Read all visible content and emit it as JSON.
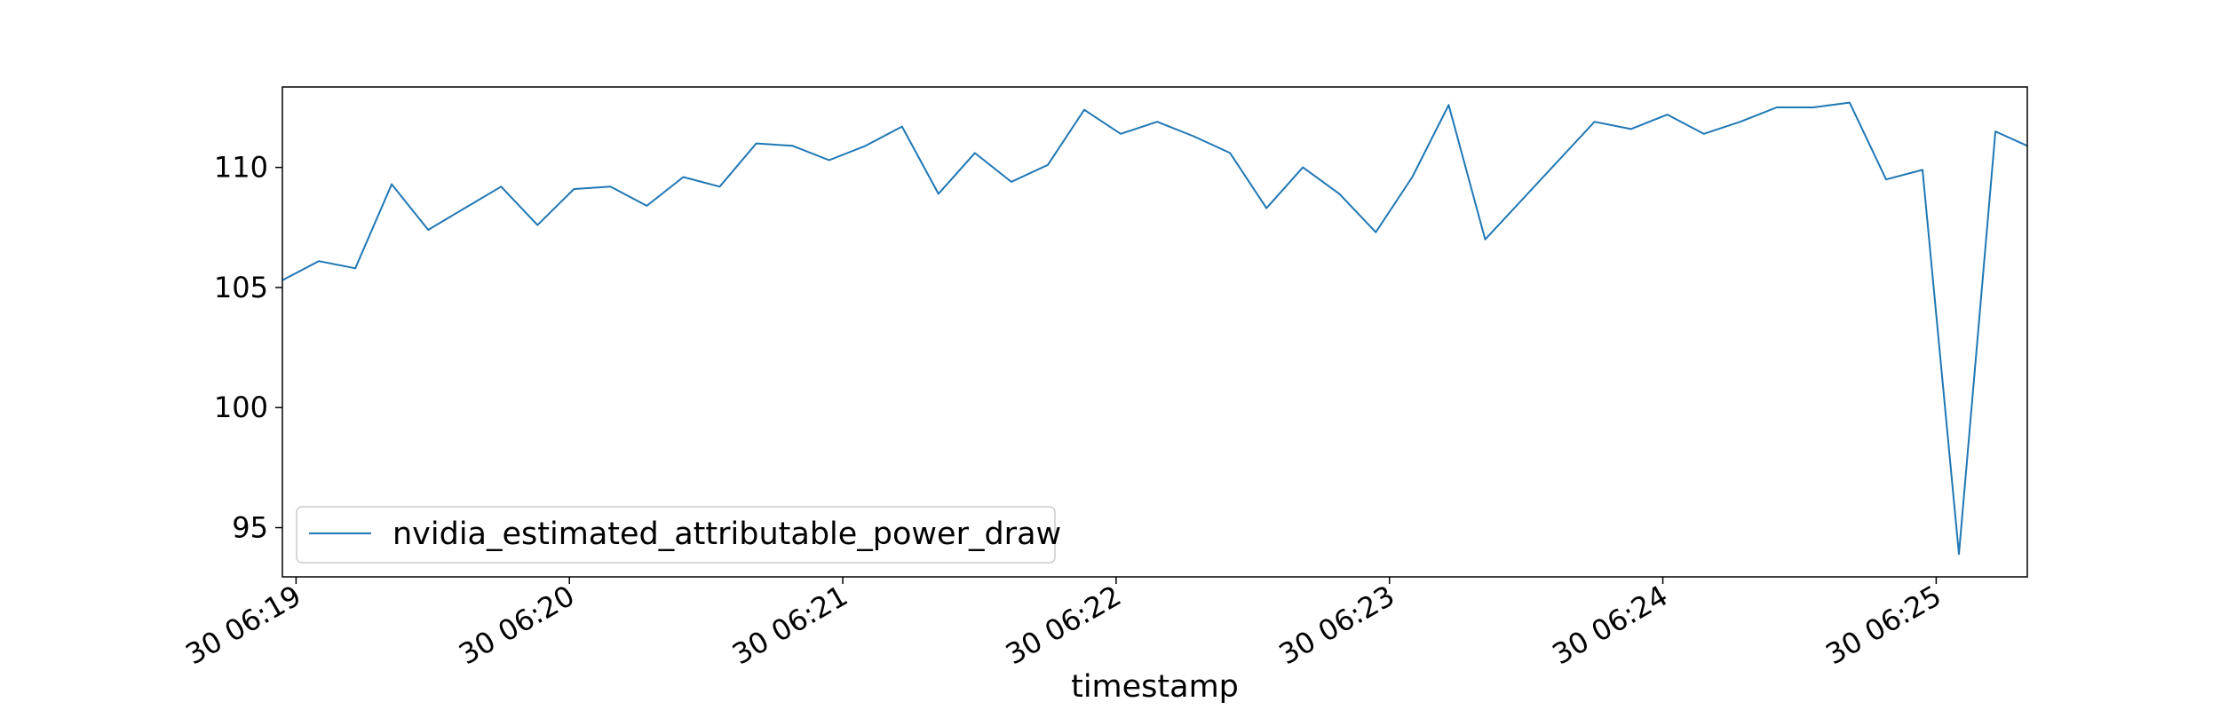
{
  "chart_data": {
    "type": "line",
    "title": "",
    "xlabel": "timestamp",
    "ylabel": "",
    "x_unit": "seconds",
    "xlim": [
      "30 06:18:57",
      "30 06:25:20"
    ],
    "ylim": [
      92.95,
      113.35
    ],
    "xticks": [
      {
        "at": "30 06:19:00",
        "label": "30 06:19"
      },
      {
        "at": "30 06:20:00",
        "label": "30 06:20"
      },
      {
        "at": "30 06:21:00",
        "label": "30 06:21"
      },
      {
        "at": "30 06:22:00",
        "label": "30 06:22"
      },
      {
        "at": "30 06:23:00",
        "label": "30 06:23"
      },
      {
        "at": "30 06:24:00",
        "label": "30 06:24"
      },
      {
        "at": "30 06:25:00",
        "label": "30 06:25"
      }
    ],
    "yticks": [
      95,
      100,
      105,
      110
    ],
    "grid": false,
    "legend": {
      "placement": "lower-left"
    },
    "series": [
      {
        "name": "nvidia_estimated_attributable_power_draw",
        "color": "#1f77b4",
        "x": [
          "30 06:18:57",
          "30 06:19:05",
          "30 06:19:13",
          "30 06:19:21",
          "30 06:19:29",
          "30 06:19:37",
          "30 06:19:45",
          "30 06:19:53",
          "30 06:20:01",
          "30 06:20:09",
          "30 06:20:17",
          "30 06:20:25",
          "30 06:20:33",
          "30 06:20:41",
          "30 06:20:49",
          "30 06:20:57",
          "30 06:21:05",
          "30 06:21:13",
          "30 06:21:21",
          "30 06:21:29",
          "30 06:21:37",
          "30 06:21:45",
          "30 06:21:53",
          "30 06:22:01",
          "30 06:22:09",
          "30 06:22:17",
          "30 06:22:25",
          "30 06:22:33",
          "30 06:22:41",
          "30 06:22:49",
          "30 06:22:57",
          "30 06:23:05",
          "30 06:23:13",
          "30 06:23:21",
          "30 06:23:45",
          "30 06:23:53",
          "30 06:24:01",
          "30 06:24:09",
          "30 06:24:17",
          "30 06:24:25",
          "30 06:24:33",
          "30 06:24:41",
          "30 06:24:49",
          "30 06:24:57",
          "30 06:25:05",
          "30 06:25:13",
          "30 06:25:20"
        ],
        "values": [
          105.3,
          106.1,
          105.8,
          109.3,
          107.4,
          108.3,
          109.2,
          107.6,
          109.1,
          109.2,
          108.4,
          109.6,
          109.2,
          111.0,
          110.9,
          110.3,
          110.9,
          111.7,
          108.9,
          110.6,
          109.4,
          110.1,
          112.4,
          111.4,
          111.9,
          111.3,
          110.6,
          108.3,
          110.0,
          108.9,
          107.3,
          109.6,
          112.6,
          107.0,
          111.9,
          111.6,
          112.2,
          111.4,
          111.9,
          112.5,
          112.5,
          112.7,
          109.5,
          109.9,
          93.9,
          111.5,
          110.9
        ]
      }
    ]
  }
}
